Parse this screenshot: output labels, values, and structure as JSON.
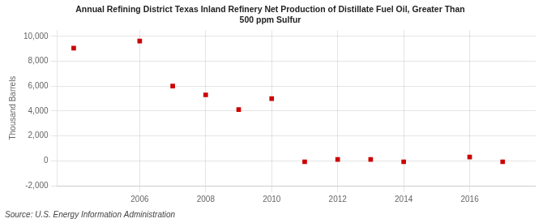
{
  "chart_data": {
    "type": "scatter",
    "title": "Annual Refining District Texas Inland Refinery Net Production of Distillate Fuel Oil, Greater Than\n500 ppm Sulfur",
    "ylabel": "Thousand Barrels",
    "source": "Source: U.S. Energy Information Administration",
    "x": [
      2004,
      2006,
      2007,
      2008,
      2009,
      2010,
      2011,
      2012,
      2013,
      2014,
      2016,
      2017
    ],
    "values": [
      9050,
      9620,
      6010,
      5300,
      4120,
      5000,
      -80,
      110,
      110,
      -80,
      310,
      -80
    ],
    "color": "#cc0000",
    "marker": "square",
    "xlim": [
      2003.5,
      2018
    ],
    "ylim": [
      -2000,
      10500
    ],
    "xticks": [
      2006,
      2008,
      2010,
      2012,
      2014,
      2016
    ],
    "yticks": [
      {
        "value": -2000,
        "label": "-2,000"
      },
      0,
      {
        "value": 2000,
        "label": "2,000"
      },
      {
        "value": 4000,
        "label": "4,000"
      },
      {
        "value": 6000,
        "label": "6,000"
      },
      {
        "value": 8000,
        "label": "8,000"
      },
      {
        "value": 10000,
        "label": "10,000"
      }
    ],
    "grid": true
  }
}
